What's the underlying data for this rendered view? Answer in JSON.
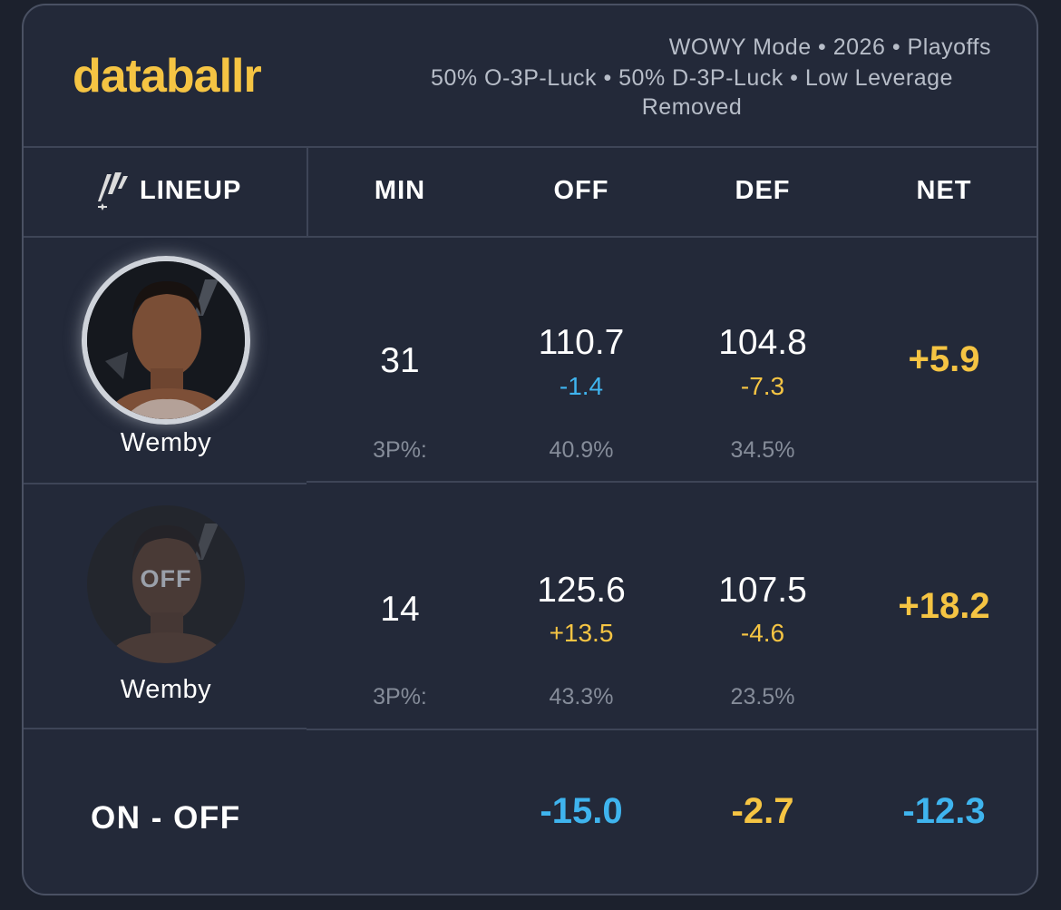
{
  "brand": "databallr",
  "meta": {
    "line1": "WOWY Mode • 2026 • Playoffs",
    "line2": "50% O-3P-Luck • 50% D-3P-Luck • Low Leverage",
    "line3": "Removed"
  },
  "headers": {
    "lineup": "LINEUP",
    "min": "MIN",
    "off": "OFF",
    "def": "DEF",
    "net": "NET"
  },
  "rows": [
    {
      "player": "Wemby",
      "status": "on",
      "min": "31",
      "off": "110.7",
      "off_diff": "-1.4",
      "def": "104.8",
      "def_diff": "-7.3",
      "net": "+5.9",
      "pct_label": "3P%:",
      "off_3p": "40.9%",
      "def_3p": "34.5%"
    },
    {
      "player": "Wemby",
      "status": "off",
      "status_label": "OFF",
      "min": "14",
      "off": "125.6",
      "off_diff": "+13.5",
      "def": "107.5",
      "def_diff": "-4.6",
      "net": "+18.2",
      "pct_label": "3P%:",
      "off_3p": "43.3%",
      "def_3p": "23.5%"
    }
  ],
  "summary": {
    "label": "ON - OFF",
    "off": "-15.0",
    "def": "-2.7",
    "net": "-12.3"
  },
  "colors": {
    "accent": "#f5c443",
    "positive_blue": "#3fb4ee",
    "background": "#232939"
  },
  "icons": {
    "team_logo": "spurs-icon",
    "player_photo": "player-avatar"
  }
}
